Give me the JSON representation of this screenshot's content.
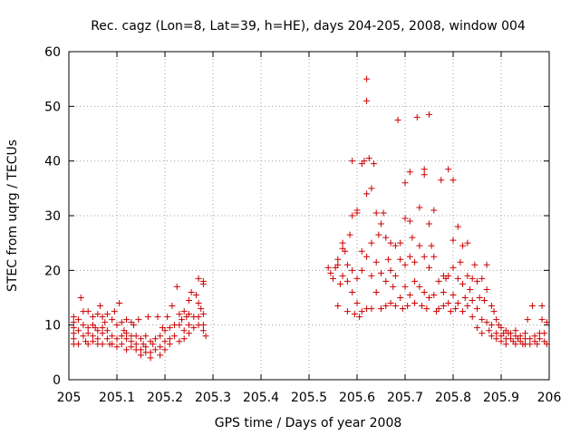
{
  "chart_data": {
    "type": "scatter",
    "title": "Rec. cagz (Lon=8, Lat=39, h=HE), days 204-205, 2008, window 004",
    "xlabel": "GPS time / Days of year 2008",
    "ylabel": "STEC from uqrg / TECUs",
    "xlim": [
      205,
      206
    ],
    "ylim": [
      0,
      60
    ],
    "xticks": [
      "205",
      "205.1",
      "205.2",
      "205.3",
      "205.4",
      "205.5",
      "205.6",
      "205.7",
      "205.8",
      "205.9",
      "206"
    ],
    "yticks": [
      "0",
      "10",
      "20",
      "30",
      "40",
      "50",
      "60"
    ],
    "grid": true,
    "marker": "+",
    "colors": {
      "marker": "#cc0000"
    },
    "series": [
      {
        "points": [
          [
            205.01,
            11.5
          ],
          [
            205.01,
            10.5
          ],
          [
            205.01,
            9.5
          ],
          [
            205.01,
            8.5
          ],
          [
            205.01,
            7.5
          ],
          [
            205.01,
            6.5
          ],
          [
            205.02,
            11
          ],
          [
            205.02,
            9
          ],
          [
            205.02,
            6.5
          ],
          [
            205.025,
            15
          ],
          [
            205.03,
            12.5
          ],
          [
            205.03,
            10
          ],
          [
            205.03,
            8
          ],
          [
            205.035,
            7
          ],
          [
            205.04,
            12.5
          ],
          [
            205.04,
            9.5
          ],
          [
            205.04,
            8.5
          ],
          [
            205.04,
            6.5
          ],
          [
            205.05,
            11.5
          ],
          [
            205.05,
            10
          ],
          [
            205.05,
            8
          ],
          [
            205.05,
            7
          ],
          [
            205.055,
            9.5
          ],
          [
            205.06,
            12
          ],
          [
            205.06,
            9
          ],
          [
            205.06,
            7.5
          ],
          [
            205.06,
            6.5
          ],
          [
            205.065,
            13.5
          ],
          [
            205.07,
            11.5
          ],
          [
            205.07,
            9.5
          ],
          [
            205.07,
            8.5
          ],
          [
            205.07,
            6.5
          ],
          [
            205.075,
            10.5
          ],
          [
            205.08,
            12
          ],
          [
            205.08,
            9
          ],
          [
            205.08,
            7.5
          ],
          [
            205.085,
            6.5
          ],
          [
            205.09,
            11
          ],
          [
            205.09,
            8
          ],
          [
            205.09,
            6.5
          ],
          [
            205.095,
            12.5
          ],
          [
            205.1,
            10
          ],
          [
            205.1,
            7.5
          ],
          [
            205.1,
            6
          ],
          [
            205.105,
            14
          ],
          [
            205.11,
            10.5
          ],
          [
            205.11,
            8
          ],
          [
            205.11,
            6.5
          ],
          [
            205.115,
            9
          ],
          [
            205.12,
            11
          ],
          [
            205.12,
            8.5
          ],
          [
            205.12,
            7.5
          ],
          [
            205.12,
            5.5
          ],
          [
            205.13,
            10.5
          ],
          [
            205.13,
            8
          ],
          [
            205.13,
            7
          ],
          [
            205.13,
            6
          ],
          [
            205.135,
            10
          ],
          [
            205.14,
            8
          ],
          [
            205.14,
            6.5
          ],
          [
            205.14,
            5.5
          ],
          [
            205.145,
            11
          ],
          [
            205.15,
            7.5
          ],
          [
            205.15,
            5.5
          ],
          [
            205.15,
            4.5
          ],
          [
            205.155,
            6.5
          ],
          [
            205.16,
            8
          ],
          [
            205.16,
            6
          ],
          [
            205.16,
            5
          ],
          [
            205.165,
            11.5
          ],
          [
            205.17,
            7
          ],
          [
            205.17,
            5
          ],
          [
            205.17,
            4
          ],
          [
            205.175,
            6.5
          ],
          [
            205.18,
            7.5
          ],
          [
            205.18,
            5.5
          ],
          [
            205.185,
            11.5
          ],
          [
            205.19,
            8
          ],
          [
            205.19,
            6
          ],
          [
            205.19,
            4.5
          ],
          [
            205.195,
            9.5
          ],
          [
            205.2,
            9
          ],
          [
            205.2,
            7
          ],
          [
            205.2,
            5.5
          ],
          [
            205.205,
            11.5
          ],
          [
            205.21,
            9.5
          ],
          [
            205.21,
            7.5
          ],
          [
            205.21,
            6.5
          ],
          [
            205.215,
            13.5
          ],
          [
            205.22,
            10
          ],
          [
            205.22,
            8
          ],
          [
            205.225,
            17
          ],
          [
            205.23,
            12
          ],
          [
            205.23,
            10
          ],
          [
            205.23,
            7
          ],
          [
            205.235,
            11
          ],
          [
            205.24,
            12.5
          ],
          [
            205.24,
            9
          ],
          [
            205.24,
            7.5
          ],
          [
            205.245,
            11.5
          ],
          [
            205.25,
            14.5
          ],
          [
            205.25,
            12
          ],
          [
            205.25,
            10
          ],
          [
            205.25,
            8.5
          ],
          [
            205.255,
            16
          ],
          [
            205.26,
            11.5
          ],
          [
            205.26,
            9.5
          ],
          [
            205.265,
            15.5
          ],
          [
            205.27,
            18.5
          ],
          [
            205.27,
            14
          ],
          [
            205.27,
            11.5
          ],
          [
            205.27,
            10
          ],
          [
            205.275,
            13
          ],
          [
            205.28,
            18
          ],
          [
            205.28,
            17.5
          ],
          [
            205.28,
            12
          ],
          [
            205.28,
            10
          ],
          [
            205.28,
            9
          ],
          [
            205.285,
            8
          ],
          [
            205.54,
            20.5
          ],
          [
            205.545,
            19.5
          ],
          [
            205.55,
            18.5
          ],
          [
            205.555,
            20.5
          ],
          [
            205.56,
            22
          ],
          [
            205.56,
            21
          ],
          [
            205.56,
            13.5
          ],
          [
            205.565,
            17.5
          ],
          [
            205.57,
            25
          ],
          [
            205.57,
            24
          ],
          [
            205.57,
            19
          ],
          [
            205.575,
            23.5
          ],
          [
            205.58,
            21
          ],
          [
            205.58,
            18
          ],
          [
            205.58,
            12.5
          ],
          [
            205.585,
            26.5
          ],
          [
            205.59,
            30
          ],
          [
            205.59,
            40
          ],
          [
            205.59,
            20
          ],
          [
            205.59,
            16
          ],
          [
            205.595,
            12
          ],
          [
            205.6,
            31
          ],
          [
            205.6,
            30.5
          ],
          [
            205.6,
            18.5
          ],
          [
            205.6,
            14
          ],
          [
            205.605,
            11.5
          ],
          [
            205.61,
            39.5
          ],
          [
            205.61,
            23.5
          ],
          [
            205.61,
            20
          ],
          [
            205.61,
            12.5
          ],
          [
            205.615,
            40
          ],
          [
            205.62,
            55
          ],
          [
            205.62,
            51
          ],
          [
            205.62,
            34
          ],
          [
            205.62,
            22.5
          ],
          [
            205.62,
            13
          ],
          [
            205.625,
            40.5
          ],
          [
            205.63,
            35
          ],
          [
            205.63,
            25
          ],
          [
            205.63,
            19
          ],
          [
            205.63,
            13
          ],
          [
            205.635,
            39.5
          ],
          [
            205.64,
            30.5
          ],
          [
            205.64,
            21.5
          ],
          [
            205.64,
            16
          ],
          [
            205.645,
            26.5
          ],
          [
            205.65,
            28.5
          ],
          [
            205.65,
            19.5
          ],
          [
            205.65,
            13
          ],
          [
            205.655,
            30.5
          ],
          [
            205.66,
            26
          ],
          [
            205.66,
            18
          ],
          [
            205.66,
            13.5
          ],
          [
            205.665,
            22
          ],
          [
            205.67,
            25
          ],
          [
            205.67,
            20
          ],
          [
            205.67,
            14
          ],
          [
            205.675,
            17
          ],
          [
            205.68,
            24.5
          ],
          [
            205.68,
            19
          ],
          [
            205.68,
            13.5
          ],
          [
            205.685,
            47.5
          ],
          [
            205.69,
            25
          ],
          [
            205.69,
            22
          ],
          [
            205.69,
            15
          ],
          [
            205.695,
            13
          ],
          [
            205.7,
            36
          ],
          [
            205.7,
            29.5
          ],
          [
            205.7,
            21
          ],
          [
            205.7,
            17
          ],
          [
            205.705,
            13.5
          ],
          [
            205.71,
            38
          ],
          [
            205.71,
            29
          ],
          [
            205.71,
            22.5
          ],
          [
            205.71,
            15.5
          ],
          [
            205.715,
            26
          ],
          [
            205.72,
            21.5
          ],
          [
            205.72,
            18
          ],
          [
            205.72,
            14
          ],
          [
            205.725,
            48
          ],
          [
            205.73,
            31.5
          ],
          [
            205.73,
            24.5
          ],
          [
            205.73,
            17
          ],
          [
            205.735,
            13.5
          ],
          [
            205.74,
            38.5
          ],
          [
            205.74,
            37.5
          ],
          [
            205.74,
            22.5
          ],
          [
            205.74,
            16
          ],
          [
            205.745,
            13
          ],
          [
            205.75,
            48.5
          ],
          [
            205.75,
            28.5
          ],
          [
            205.75,
            20.5
          ],
          [
            205.75,
            15
          ],
          [
            205.755,
            24.5
          ],
          [
            205.76,
            31
          ],
          [
            205.76,
            22.5
          ],
          [
            205.76,
            15.5
          ],
          [
            205.765,
            12.5
          ],
          [
            205.77,
            18
          ],
          [
            205.77,
            13
          ],
          [
            205.775,
            36.5
          ],
          [
            205.78,
            19
          ],
          [
            205.78,
            16
          ],
          [
            205.78,
            13.5
          ],
          [
            205.785,
            18.5
          ],
          [
            205.79,
            38.5
          ],
          [
            205.79,
            19
          ],
          [
            205.79,
            14
          ],
          [
            205.795,
            12.5
          ],
          [
            205.8,
            36.5
          ],
          [
            205.8,
            25.5
          ],
          [
            205.8,
            20.5
          ],
          [
            205.8,
            15.5
          ],
          [
            205.805,
            13
          ],
          [
            205.81,
            28
          ],
          [
            205.81,
            18.5
          ],
          [
            205.81,
            14
          ],
          [
            205.815,
            21.5
          ],
          [
            205.82,
            24.5
          ],
          [
            205.82,
            17.5
          ],
          [
            205.82,
            12.5
          ],
          [
            205.825,
            15
          ],
          [
            205.83,
            25
          ],
          [
            205.83,
            19
          ],
          [
            205.83,
            13.5
          ],
          [
            205.835,
            16.5
          ],
          [
            205.84,
            18.5
          ],
          [
            205.84,
            14.5
          ],
          [
            205.84,
            11.5
          ],
          [
            205.845,
            21
          ],
          [
            205.85,
            18
          ],
          [
            205.85,
            13
          ],
          [
            205.85,
            9.5
          ],
          [
            205.855,
            15
          ],
          [
            205.86,
            18.5
          ],
          [
            205.86,
            11
          ],
          [
            205.86,
            8.5
          ],
          [
            205.865,
            14.5
          ],
          [
            205.87,
            21
          ],
          [
            205.87,
            16.5
          ],
          [
            205.87,
            10.5
          ],
          [
            205.875,
            9
          ],
          [
            205.88,
            13.5
          ],
          [
            205.88,
            10
          ],
          [
            205.88,
            8
          ],
          [
            205.885,
            12.5
          ],
          [
            205.89,
            11
          ],
          [
            205.89,
            8.5
          ],
          [
            205.89,
            7.5
          ],
          [
            205.895,
            10
          ],
          [
            205.9,
            9.5
          ],
          [
            205.9,
            8
          ],
          [
            205.9,
            7
          ],
          [
            205.905,
            8.5
          ],
          [
            205.91,
            9
          ],
          [
            205.91,
            7.5
          ],
          [
            205.91,
            6.5
          ],
          [
            205.915,
            8.5
          ],
          [
            205.92,
            8.5
          ],
          [
            205.92,
            7.5
          ],
          [
            205.925,
            7
          ],
          [
            205.93,
            9
          ],
          [
            205.93,
            8
          ],
          [
            205.93,
            6.5
          ],
          [
            205.935,
            7.5
          ],
          [
            205.94,
            8
          ],
          [
            205.94,
            7
          ],
          [
            205.945,
            6.5
          ],
          [
            205.95,
            8.5
          ],
          [
            205.95,
            7.5
          ],
          [
            205.95,
            6.5
          ],
          [
            205.955,
            11
          ],
          [
            205.96,
            7.5
          ],
          [
            205.96,
            6.5
          ],
          [
            205.965,
            13.5
          ],
          [
            205.97,
            8
          ],
          [
            205.97,
            7
          ],
          [
            205.975,
            6.5
          ],
          [
            205.98,
            8.5
          ],
          [
            205.98,
            7.5
          ],
          [
            205.985,
            13.5
          ],
          [
            205.99,
            8.5
          ],
          [
            205.99,
            7
          ],
          [
            205.995,
            6.5
          ],
          [
            205.985,
            11
          ],
          [
            205.995,
            10.5
          ]
        ]
      }
    ]
  }
}
